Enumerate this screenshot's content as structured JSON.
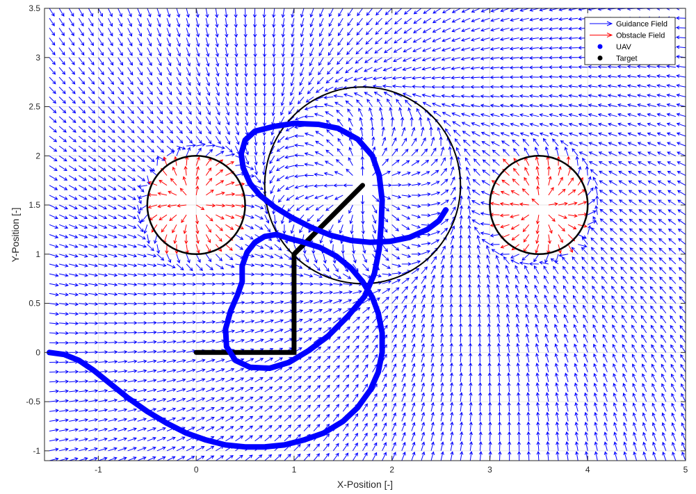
{
  "chart_data": {
    "type": "quiver",
    "title": "",
    "xlabel": "X-Position [-]",
    "ylabel": "Y-Position [-]",
    "xlim": [
      -1.55,
      5
    ],
    "ylim": [
      -1.1,
      3.5
    ],
    "xticks": [
      -1,
      0,
      1,
      2,
      3,
      4,
      5
    ],
    "yticks": [
      -1,
      -0.5,
      0,
      0.5,
      1,
      1.5,
      2,
      2.5,
      3,
      3.5
    ],
    "xtick_labels": [
      "-1",
      "0",
      "1",
      "2",
      "3",
      "4",
      "5"
    ],
    "ytick_labels": [
      "-1",
      "-0.5",
      "0",
      "0.5",
      "1",
      "1.5",
      "2",
      "2.5",
      "3",
      "3.5"
    ],
    "grid": true,
    "legend": {
      "position": "top-right",
      "entries": [
        {
          "label": "Guidance Field",
          "kind": "arrow",
          "color": "#0000ff"
        },
        {
          "label": "Obstacle Field",
          "kind": "arrow",
          "color": "#ff0000"
        },
        {
          "label": "UAV",
          "kind": "dot",
          "color": "#0000ff"
        },
        {
          "label": "Target",
          "kind": "dot",
          "color": "#000000"
        }
      ]
    },
    "guidance_field": {
      "color": "#0000ff",
      "target_circle": {
        "center": [
          1.7,
          1.7
        ],
        "radius": 1.0
      },
      "grid_step": 0.1
    },
    "obstacles": [
      {
        "center": [
          0,
          1.5
        ],
        "radius": 0.5,
        "color": "#ff0000"
      },
      {
        "center": [
          3.5,
          1.5
        ],
        "radius": 0.5,
        "color": "#ff0000"
      }
    ],
    "target_path": {
      "color": "#000000",
      "points": [
        [
          0,
          0
        ],
        [
          1,
          0
        ],
        [
          1,
          1
        ],
        [
          1.7,
          1.7
        ]
      ]
    },
    "uav_trajectory": {
      "color": "#0000ff",
      "points": [
        [
          -1.5,
          0
        ],
        [
          -1.35,
          -0.02
        ],
        [
          -1.2,
          -0.08
        ],
        [
          -1.05,
          -0.18
        ],
        [
          -0.9,
          -0.3
        ],
        [
          -0.7,
          -0.46
        ],
        [
          -0.5,
          -0.6
        ],
        [
          -0.3,
          -0.72
        ],
        [
          -0.1,
          -0.82
        ],
        [
          0.1,
          -0.89
        ],
        [
          0.3,
          -0.94
        ],
        [
          0.5,
          -0.96
        ],
        [
          0.7,
          -0.96
        ],
        [
          0.9,
          -0.94
        ],
        [
          1.1,
          -0.89
        ],
        [
          1.3,
          -0.82
        ],
        [
          1.5,
          -0.7
        ],
        [
          1.65,
          -0.56
        ],
        [
          1.78,
          -0.38
        ],
        [
          1.86,
          -0.2
        ],
        [
          1.9,
          0.0
        ],
        [
          1.9,
          0.2
        ],
        [
          1.86,
          0.4
        ],
        [
          1.8,
          0.56
        ],
        [
          1.7,
          0.72
        ],
        [
          1.58,
          0.86
        ],
        [
          1.43,
          0.98
        ],
        [
          1.26,
          1.07
        ],
        [
          1.1,
          1.12
        ],
        [
          0.95,
          1.16
        ],
        [
          0.82,
          1.2
        ],
        [
          0.7,
          1.18
        ],
        [
          0.6,
          1.12
        ],
        [
          0.52,
          1.02
        ],
        [
          0.47,
          0.88
        ],
        [
          0.47,
          0.72
        ],
        [
          0.42,
          0.58
        ],
        [
          0.35,
          0.42
        ],
        [
          0.3,
          0.24
        ],
        [
          0.31,
          0.06
        ],
        [
          0.4,
          -0.08
        ],
        [
          0.55,
          -0.15
        ],
        [
          0.75,
          -0.16
        ],
        [
          0.95,
          -0.1
        ],
        [
          1.15,
          0.02
        ],
        [
          1.35,
          0.17
        ],
        [
          1.55,
          0.37
        ],
        [
          1.72,
          0.57
        ],
        [
          1.82,
          0.8
        ],
        [
          1.87,
          1.05
        ],
        [
          1.89,
          1.3
        ],
        [
          1.9,
          1.55
        ],
        [
          1.87,
          1.8
        ],
        [
          1.8,
          2.0
        ],
        [
          1.65,
          2.17
        ],
        [
          1.45,
          2.28
        ],
        [
          1.25,
          2.32
        ],
        [
          1.0,
          2.33
        ],
        [
          0.8,
          2.3
        ],
        [
          0.6,
          2.25
        ],
        [
          0.5,
          2.16
        ],
        [
          0.46,
          2.02
        ],
        [
          0.48,
          1.88
        ],
        [
          0.55,
          1.72
        ],
        [
          0.65,
          1.6
        ],
        [
          0.8,
          1.48
        ],
        [
          0.98,
          1.37
        ],
        [
          1.18,
          1.27
        ],
        [
          1.38,
          1.19
        ],
        [
          1.58,
          1.14
        ],
        [
          1.78,
          1.12
        ],
        [
          1.98,
          1.13
        ],
        [
          2.18,
          1.17
        ],
        [
          2.36,
          1.25
        ],
        [
          2.48,
          1.34
        ],
        [
          2.55,
          1.45
        ]
      ]
    }
  }
}
